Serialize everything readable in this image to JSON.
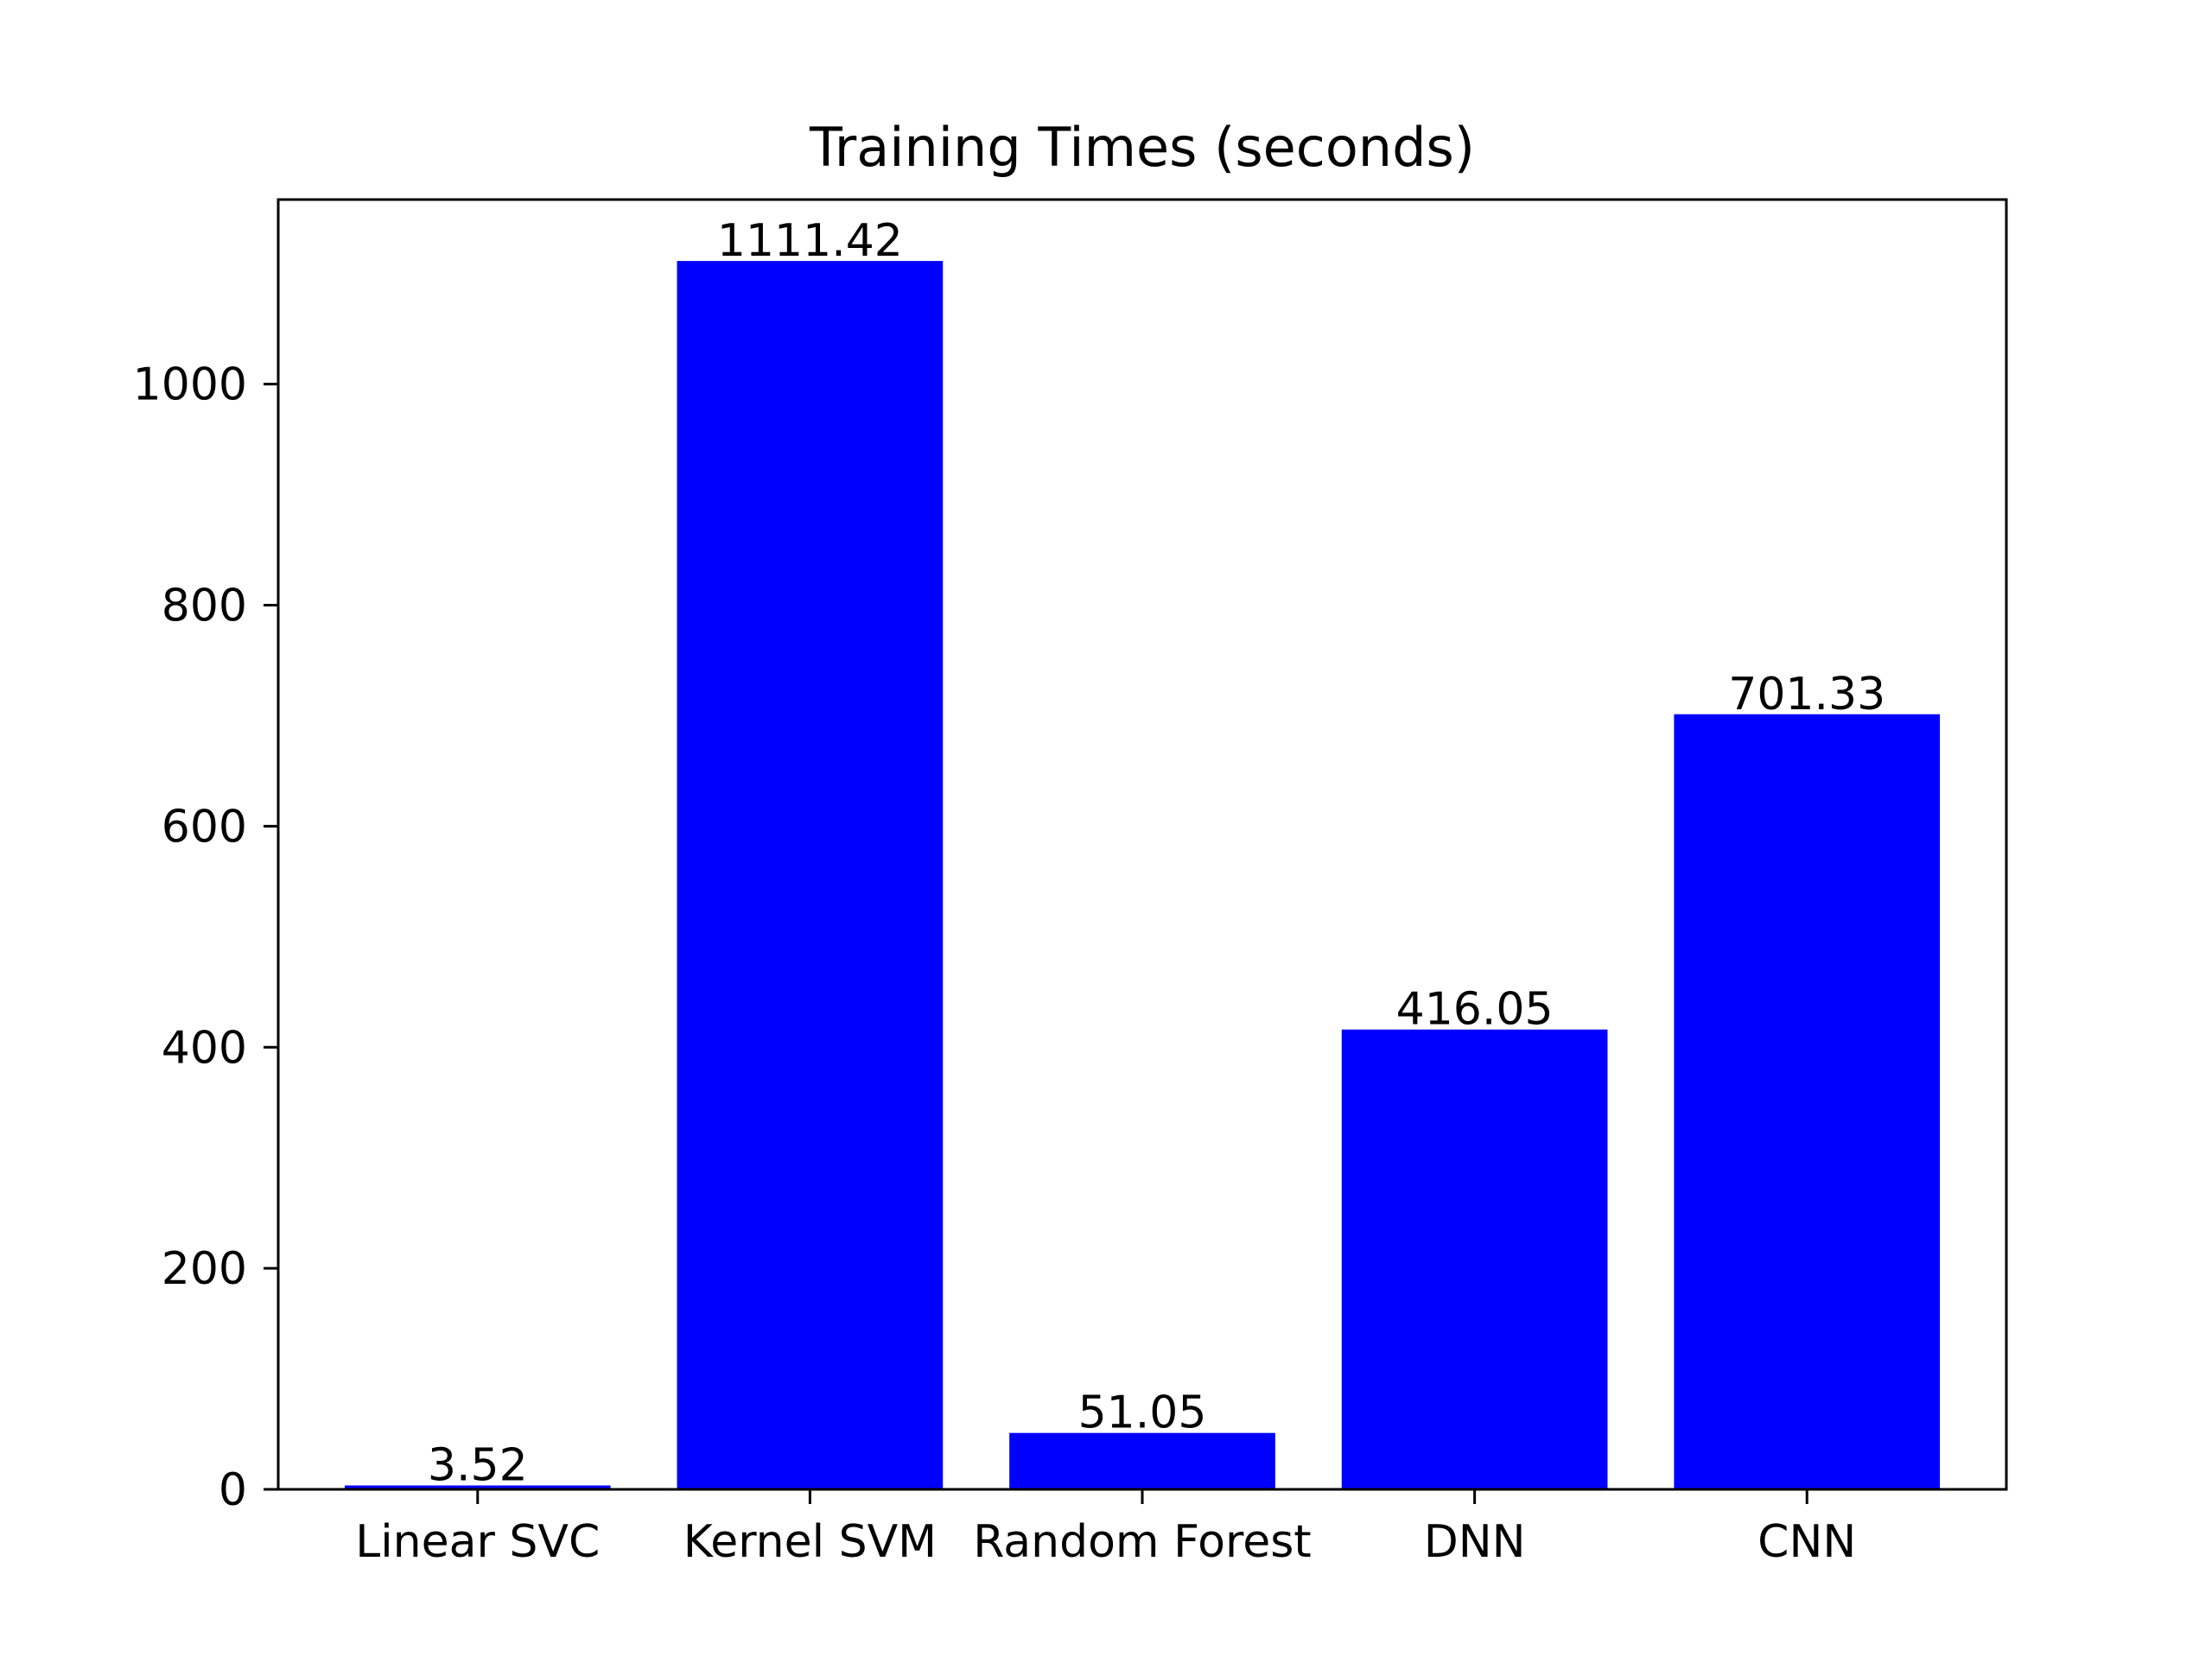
{
  "chart_data": {
    "type": "bar",
    "title": "Training Times (seconds)",
    "xlabel": "",
    "ylabel": "",
    "categories": [
      "Linear SVC",
      "Kernel SVM",
      "Random Forest",
      "DNN",
      "CNN"
    ],
    "values": [
      3.52,
      1111.42,
      51.05,
      416.05,
      701.33
    ],
    "data_labels": [
      "3.52",
      "1111.42",
      "51.05",
      "416.05",
      "701.33"
    ],
    "ylim": [
      0,
      1167
    ],
    "yticks": [
      0,
      200,
      400,
      600,
      800,
      1000
    ],
    "ytick_labels": [
      "0",
      "200",
      "400",
      "600",
      "800",
      "1000"
    ],
    "bar_color": "#0000ff",
    "grid": false,
    "legend": "none"
  }
}
